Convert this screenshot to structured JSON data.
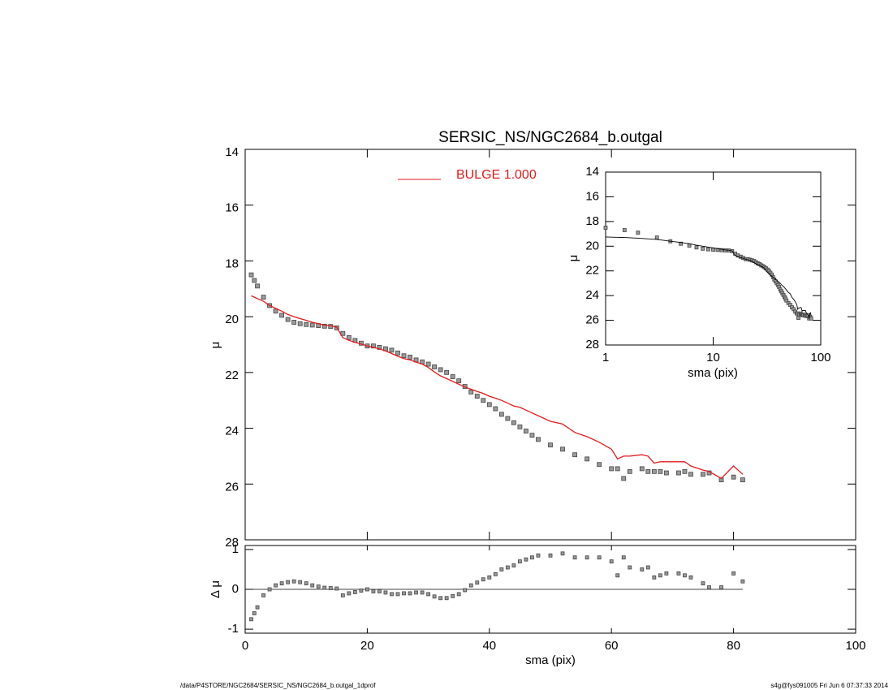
{
  "chart_data": [
    {
      "type": "scatter",
      "title": "SERSIC_NS/NGC2684_b.outgal",
      "ylabel": "μ",
      "xlim": [
        0,
        100
      ],
      "ylim": [
        14,
        28
      ],
      "y_inverted": true,
      "xticks": [
        0,
        20,
        40,
        60,
        80,
        100
      ],
      "yticks": [
        14,
        16,
        18,
        20,
        22,
        24,
        26,
        28
      ],
      "x": [
        1,
        1.5,
        2,
        3,
        4,
        5,
        6,
        7,
        8,
        9,
        10,
        11,
        12,
        13,
        14,
        15,
        16,
        17,
        18,
        19,
        20,
        21,
        22,
        23,
        24,
        25,
        26,
        27,
        28,
        29,
        30,
        31,
        32,
        33,
        34,
        35,
        36,
        37,
        38,
        39,
        40,
        41,
        42,
        43,
        44,
        45,
        46,
        47,
        48,
        50,
        52,
        54,
        56,
        58,
        60,
        61,
        62,
        63,
        65,
        66,
        67,
        68,
        69,
        71,
        72,
        73,
        75,
        76,
        78,
        80,
        81.5
      ],
      "series": [
        {
          "color": "#8c8c8c",
          "values": [
            18.5,
            18.7,
            18.9,
            19.3,
            19.6,
            19.8,
            19.95,
            20.1,
            20.2,
            20.25,
            20.28,
            20.3,
            20.32,
            20.34,
            20.35,
            20.4,
            20.6,
            20.75,
            20.85,
            20.95,
            21.05,
            21.05,
            21.1,
            21.15,
            21.2,
            21.3,
            21.4,
            21.45,
            21.55,
            21.62,
            21.7,
            21.8,
            21.9,
            22.0,
            22.15,
            22.3,
            22.5,
            22.7,
            22.85,
            23.0,
            23.15,
            23.3,
            23.5,
            23.65,
            23.8,
            23.95,
            24.1,
            24.25,
            24.4,
            24.6,
            24.75,
            24.95,
            25.1,
            25.3,
            25.45,
            25.45,
            25.8,
            25.55,
            25.45,
            25.55,
            25.55,
            25.55,
            25.6,
            25.6,
            25.55,
            25.65,
            25.65,
            25.6,
            25.85,
            25.75,
            25.85
          ]
        },
        {
          "name": "BULGE  1.000",
          "color": "#e41a1c",
          "values": [
            19.25,
            19.3,
            19.35,
            19.45,
            19.6,
            19.7,
            19.8,
            19.92,
            20.0,
            20.07,
            20.13,
            20.2,
            20.25,
            20.3,
            20.32,
            20.38,
            20.75,
            20.85,
            20.92,
            20.98,
            21.05,
            21.1,
            21.15,
            21.23,
            21.32,
            21.42,
            21.5,
            21.55,
            21.63,
            21.7,
            21.82,
            21.98,
            22.12,
            22.22,
            22.32,
            22.42,
            22.52,
            22.6,
            22.68,
            22.75,
            22.85,
            22.92,
            23.0,
            23.1,
            23.2,
            23.25,
            23.35,
            23.45,
            23.55,
            23.75,
            23.85,
            24.15,
            24.3,
            24.5,
            24.75,
            25.1,
            25.0,
            25.0,
            24.95,
            25.0,
            25.25,
            25.2,
            25.2,
            25.2,
            25.2,
            25.35,
            25.5,
            25.55,
            25.8,
            25.35,
            25.65
          ]
        }
      ]
    },
    {
      "type": "residual",
      "xlabel": "sma (pix)",
      "ylabel": "Δ μ",
      "xlim": [
        0,
        100
      ],
      "ylim": [
        -1.1,
        1.1
      ],
      "xticks": [
        0,
        20,
        40,
        60,
        80,
        100
      ],
      "yticks": [
        -1,
        0,
        1
      ],
      "values": [
        -0.75,
        -0.6,
        -0.45,
        -0.15,
        0.0,
        0.1,
        0.15,
        0.18,
        0.2,
        0.18,
        0.15,
        0.1,
        0.07,
        0.04,
        0.03,
        0.02,
        -0.15,
        -0.1,
        -0.07,
        -0.03,
        0.0,
        -0.05,
        -0.05,
        -0.08,
        -0.12,
        -0.12,
        -0.1,
        -0.1,
        -0.08,
        -0.08,
        -0.12,
        -0.18,
        -0.22,
        -0.22,
        -0.17,
        -0.12,
        -0.02,
        0.1,
        0.17,
        0.25,
        0.3,
        0.38,
        0.5,
        0.55,
        0.6,
        0.7,
        0.75,
        0.8,
        0.85,
        0.85,
        0.9,
        0.8,
        0.8,
        0.8,
        0.7,
        0.35,
        0.8,
        0.55,
        0.5,
        0.55,
        0.3,
        0.35,
        0.4,
        0.4,
        0.35,
        0.3,
        0.15,
        0.05,
        0.05,
        0.4,
        0.2
      ]
    },
    {
      "type": "inset",
      "xlabel": "sma (pix)",
      "ylabel": "μ",
      "log_x": true,
      "line_color": "#000000",
      "xlim": [
        1,
        100
      ],
      "ylim": [
        14,
        28
      ],
      "y_inverted": true,
      "xticks": [
        1,
        10,
        100
      ],
      "yticks": [
        14,
        16,
        18,
        20,
        22,
        24,
        26,
        28
      ]
    }
  ],
  "footer": {
    "left": "/data/P4STORE/NGC2684/SERSIC_NS/NGC2684_b.outgal_1dprof",
    "right": "s4g@fys091005  Fri Jun  6 07:37:33 2014"
  }
}
